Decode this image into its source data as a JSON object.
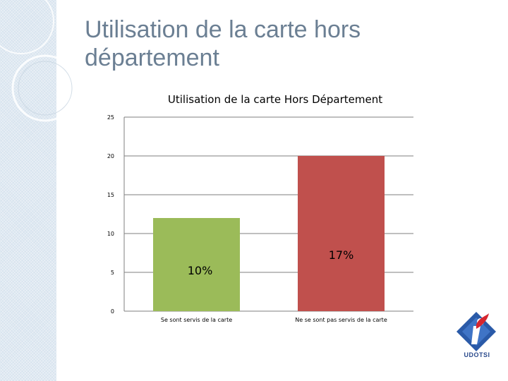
{
  "slide": {
    "title_line1": "Utilisation de la carte hors",
    "title_line2": "département"
  },
  "logo": {
    "text": "UDOTSI",
    "icon": "info-i-logo-icon"
  },
  "colors": {
    "green": "#9bbb59",
    "red": "#c0504d",
    "title": "#6b7f93"
  },
  "chart_data": {
    "type": "bar",
    "title": "Utilisation de la carte Hors Département",
    "categories": [
      "Se sont servis de la carte",
      "Ne se sont pas servis de la carte"
    ],
    "values": [
      12,
      20
    ],
    "data_labels": [
      "10%",
      "17%"
    ],
    "bar_colors": [
      "#9bbb59",
      "#c0504d"
    ],
    "ylim": [
      0,
      25
    ],
    "yticks": [
      0,
      5,
      10,
      15,
      20,
      25
    ],
    "grid": true,
    "legend": "none",
    "xlabel": "",
    "ylabel": ""
  }
}
